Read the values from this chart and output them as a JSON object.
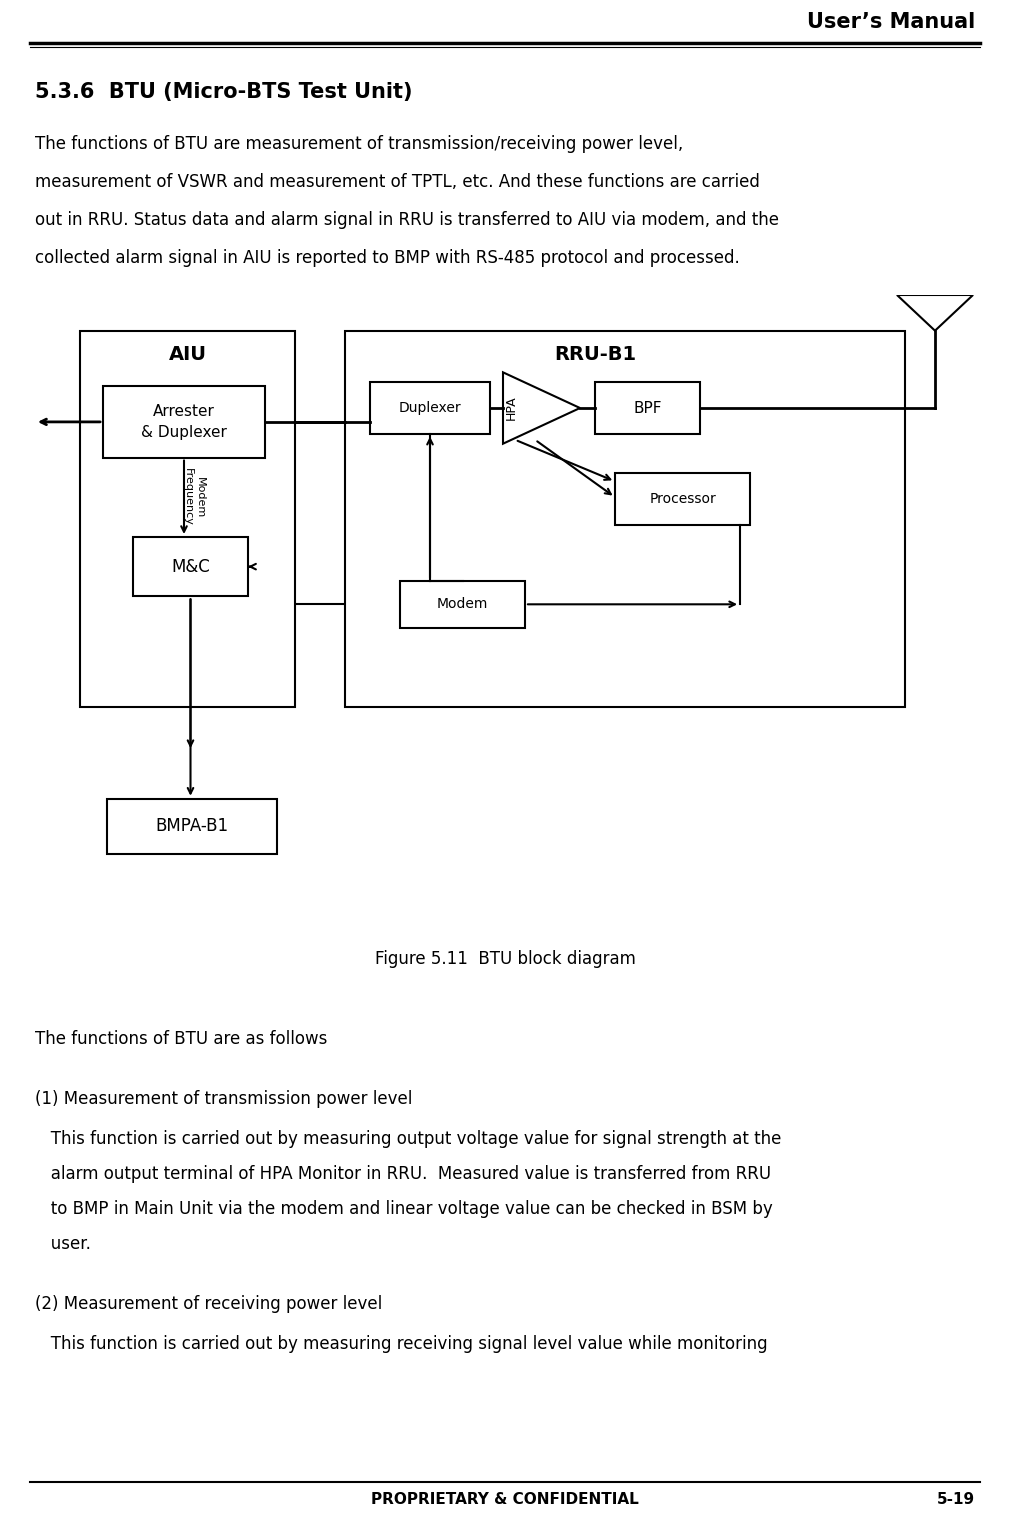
{
  "header_text": "User’s Manual",
  "footer_center": "PROPRIETARY & CONFIDENTIAL",
  "footer_right": "5-19",
  "section_title": "5.3.6  BTU (Micro-BTS Test Unit)",
  "para_lines": [
    "The functions of BTU are measurement of transmission/receiving power level,",
    "measurement of VSWR and measurement of TPTL, etc. And these functions are carried",
    "out in RRU. Status data and alarm signal in RRU is transferred to AIU via modem, and the",
    "collected alarm signal in AIU is reported to BMP with RS-485 protocol and processed."
  ],
  "figure_caption": "Figure 5.11  BTU block diagram",
  "section2_title": "The functions of BTU are as follows",
  "item1_title": "(1) Measurement of transmission power level",
  "item1_lines": [
    "   This function is carried out by measuring output voltage value for signal strength at the",
    "   alarm output terminal of HPA Monitor in RRU.  Measured value is transferred from RRU",
    "   to BMP in Main Unit via the modem and linear voltage value can be checked in BSM by",
    "   user."
  ],
  "item2_title": "(2) Measurement of receiving power level",
  "item2_lines": [
    "   This function is carried out by measuring receiving signal level value while monitoring"
  ],
  "bg_color": "#ffffff",
  "text_color": "#000000"
}
